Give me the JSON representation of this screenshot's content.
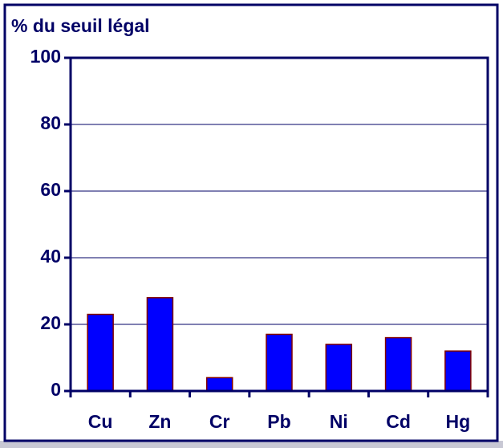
{
  "chart_data": {
    "type": "bar",
    "title": "% du seuil légal",
    "categories": [
      "Cu",
      "Zn",
      "Cr",
      "Pb",
      "Ni",
      "Cd",
      "Hg"
    ],
    "values": [
      23,
      28,
      4,
      17,
      14,
      16,
      12
    ],
    "color": "#0000ff",
    "ylim": [
      0,
      100
    ],
    "yticks": [
      0,
      20,
      40,
      60,
      80,
      100
    ],
    "grid": true
  }
}
